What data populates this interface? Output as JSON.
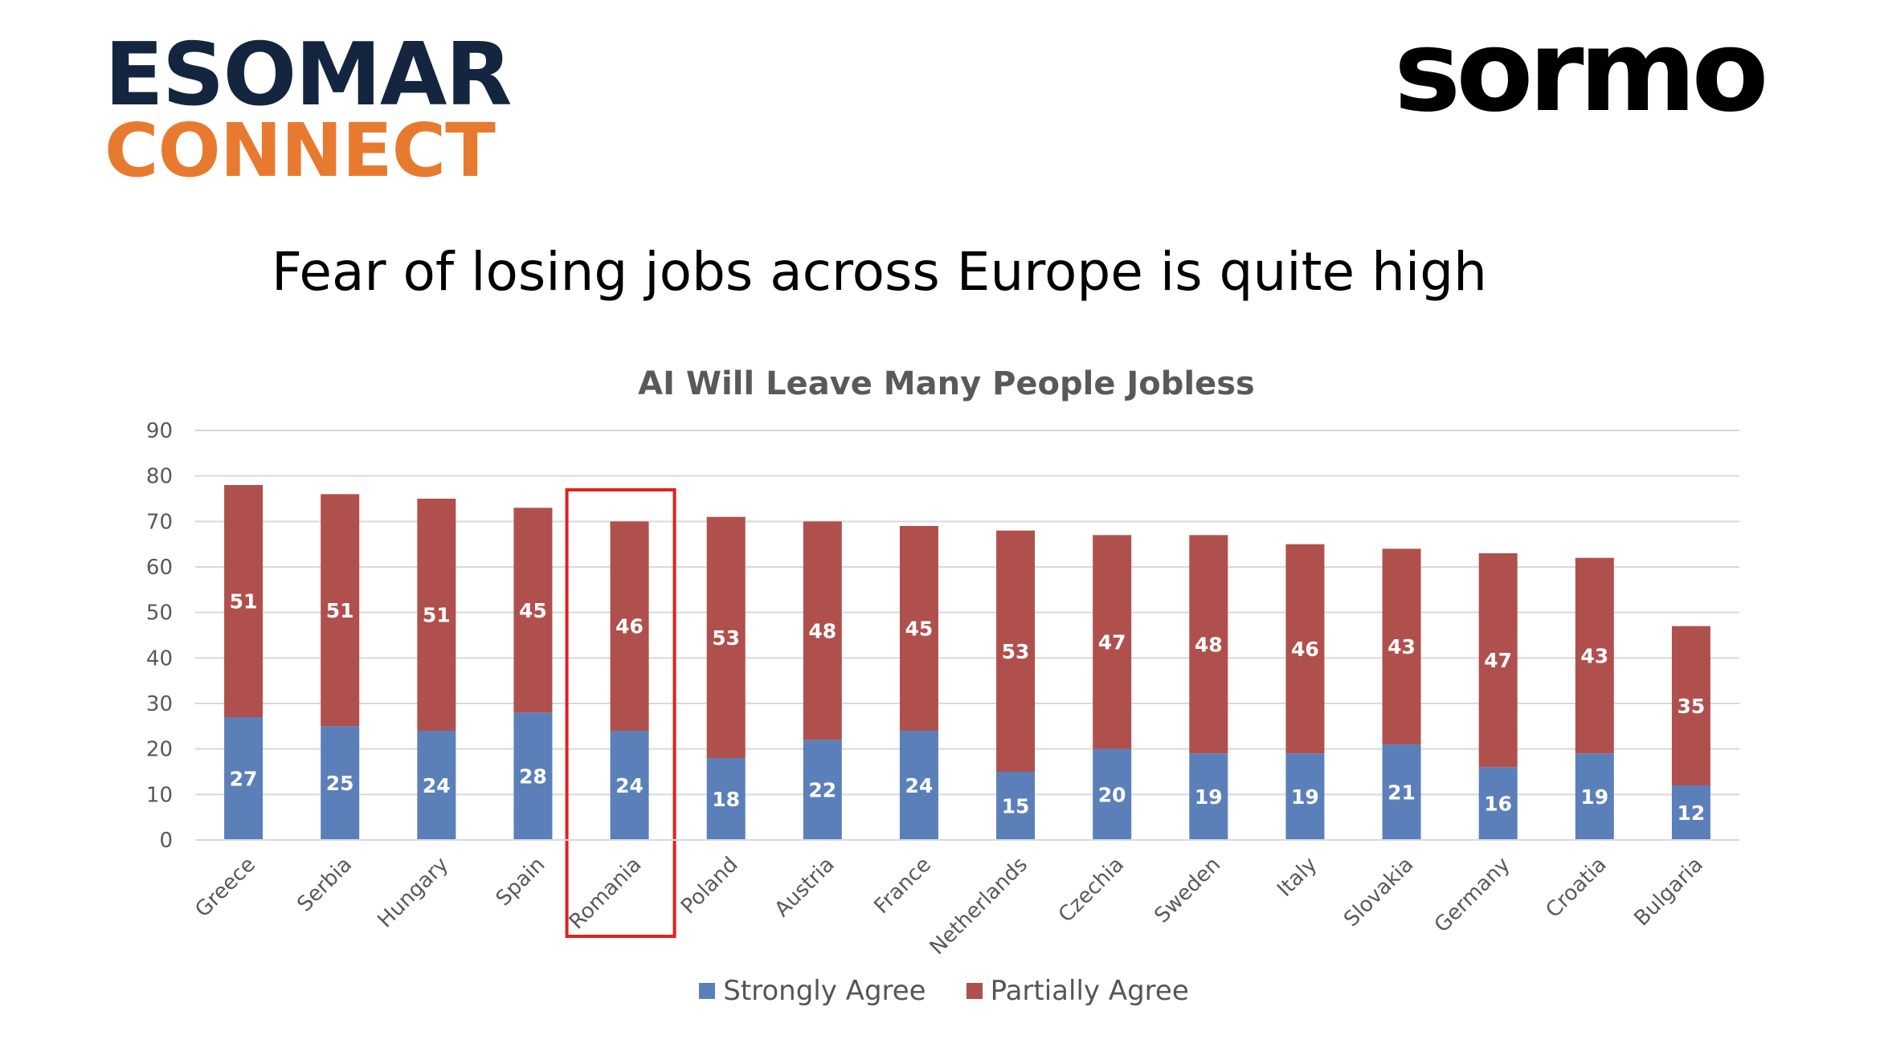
{
  "logos": {
    "esomar_line1": "ESOMAR",
    "esomar_line2": "CONNECT",
    "sormo": "sormo"
  },
  "slide_title": "Fear of losing jobs across Europe is quite high",
  "colors": {
    "strongly": "#5b80b9",
    "partially": "#b0504d",
    "highlight": "#e0221e",
    "grid": "#d9d9d9",
    "axis_text": "#595959",
    "title_text": "#595959"
  },
  "highlight_category": "Romania",
  "chart_data": {
    "type": "bar",
    "stacked": true,
    "title": "AI Will Leave Many People Jobless",
    "xlabel": "",
    "ylabel": "",
    "ylim": [
      0,
      90
    ],
    "yticks": [
      0,
      10,
      20,
      30,
      40,
      50,
      60,
      70,
      80,
      90
    ],
    "grid": true,
    "legend_position": "bottom",
    "categories": [
      "Greece",
      "Serbia",
      "Hungary",
      "Spain",
      "Romania",
      "Poland",
      "Austria",
      "France",
      "Netherlands",
      "Czechia",
      "Sweden",
      "Italy",
      "Slovakia",
      "Germany",
      "Croatia",
      "Bulgaria"
    ],
    "series": [
      {
        "name": "Strongly Agree",
        "values": [
          27,
          25,
          24,
          28,
          24,
          18,
          22,
          24,
          15,
          20,
          19,
          19,
          21,
          16,
          19,
          12
        ]
      },
      {
        "name": "Partially Agree",
        "values": [
          51,
          51,
          51,
          45,
          46,
          53,
          48,
          45,
          53,
          47,
          48,
          46,
          43,
          47,
          43,
          35
        ]
      }
    ]
  }
}
